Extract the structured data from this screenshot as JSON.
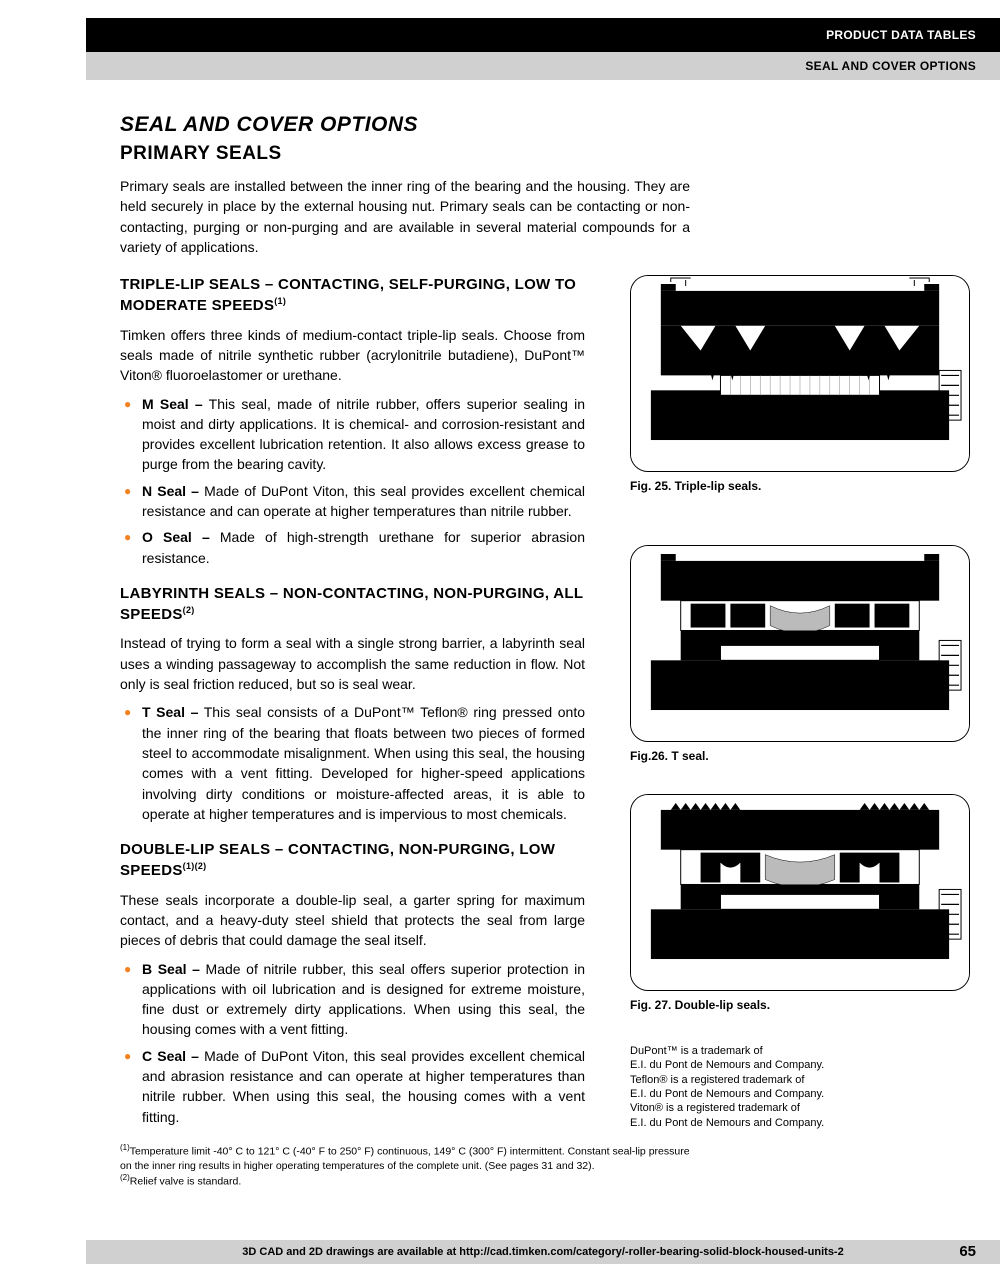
{
  "header": {
    "black": "PRODUCT DATA TABLES",
    "gray": "SEAL AND COVER OPTIONS"
  },
  "mainTitle": "SEAL AND COVER OPTIONS",
  "subTitle": "PRIMARY SEALS",
  "intro": "Primary seals are installed between the inner ring of the bearing and the housing. They are held securely in place by the external housing nut. Primary seals can be contacting or non-contacting, purging or non-purging and are available in several material compounds for a variety of applications.",
  "sections": [
    {
      "title": "TRIPLE-LIP SEALS – CONTACTING, SELF-PURGING, LOW TO MODERATE SPEEDS",
      "sup": "(1)",
      "body": "Timken offers three kinds of medium-contact triple-lip seals. Choose from seals made of nitrile synthetic rubber (acrylonitrile butadiene), DuPont™ Viton® fluoroelastomer or urethane.",
      "bullets": [
        {
          "label": "M Seal –",
          "text": " This seal, made of nitrile rubber, offers superior sealing in moist and dirty applications. It is chemical- and corrosion-resistant and provides excellent lubrication retention. It also allows excess grease to purge from the bearing cavity."
        },
        {
          "label": "N Seal –",
          "text": " Made of DuPont Viton, this seal provides excellent chemical resistance and can operate at higher temperatures than nitrile rubber."
        },
        {
          "label": "O Seal –",
          "text": " Made of high-strength urethane for superior abrasion resistance."
        }
      ]
    },
    {
      "title": "LABYRINTH SEALS – NON-CONTACTING, NON-PURGING, ALL SPEEDS",
      "sup": "(2)",
      "body": "Instead of trying to form a seal with a single strong barrier, a labyrinth seal uses a winding passageway to accomplish the same reduction in flow. Not only is seal friction reduced, but so is seal wear.",
      "bullets": [
        {
          "label": "T Seal –",
          "text": " This seal consists of a DuPont™ Teflon® ring pressed onto the inner ring of the bearing that floats between two pieces of formed steel to accommodate misalignment. When using this seal, the housing comes with a vent fitting. Developed for higher-speed applications involving dirty conditions or moisture-affected areas, it is able to operate at higher temperatures and is impervious to most chemicals."
        }
      ]
    },
    {
      "title": "DOUBLE-LIP SEALS – CONTACTING, NON-PURGING, LOW SPEEDS",
      "sup": "(1)(2)",
      "body": "These seals incorporate a double-lip seal, a garter spring for maximum contact, and a heavy-duty steel shield that protects the seal from large pieces of debris that could damage the seal itself.",
      "bullets": [
        {
          "label": "B Seal –",
          "text": " Made of nitrile rubber, this seal offers superior protection in applications with oil lubrication and is designed for extreme moisture, fine dust or extremely dirty applications. When using this seal, the housing comes with a vent fitting."
        },
        {
          "label": "C Seal –",
          "text": " Made of DuPont Viton, this seal provides excellent chemical and abrasion resistance and can operate at higher temperatures than nitrile rubber. When using this seal, the housing comes with a vent fitting."
        }
      ]
    }
  ],
  "figures": [
    {
      "caption": "Fig. 25. Triple-lip seals."
    },
    {
      "caption": "Fig.26. T seal."
    },
    {
      "caption": "Fig. 27. Double-lip seals."
    }
  ],
  "trademark": "DuPont™ is a trademark of\nE.I. du Pont de Nemours and Company.\nTeflon® is a registered trademark of\nE.I. du Pont de Nemours and Company.\nViton® is a registered trademark of\nE.I. du Pont de Nemours and Company.",
  "footnotes": {
    "f1": "Temperature limit -40° C to 121° C (-40° F to 250° F) continuous, 149° C (300° F) intermittent. Constant seal-lip pressure on the inner ring results in higher operating temperatures of the complete unit. (See pages 31 and 32).",
    "f2": "Relief valve is standard."
  },
  "footer": "3D CAD and 2D drawings are available at http://cad.timken.com/category/-roller-bearing-solid-block-housed-units-2",
  "pageNum": "65",
  "colors": {
    "bullet": "#f58220",
    "headerBlack": "#000000",
    "headerGray": "#d0d0d0"
  }
}
